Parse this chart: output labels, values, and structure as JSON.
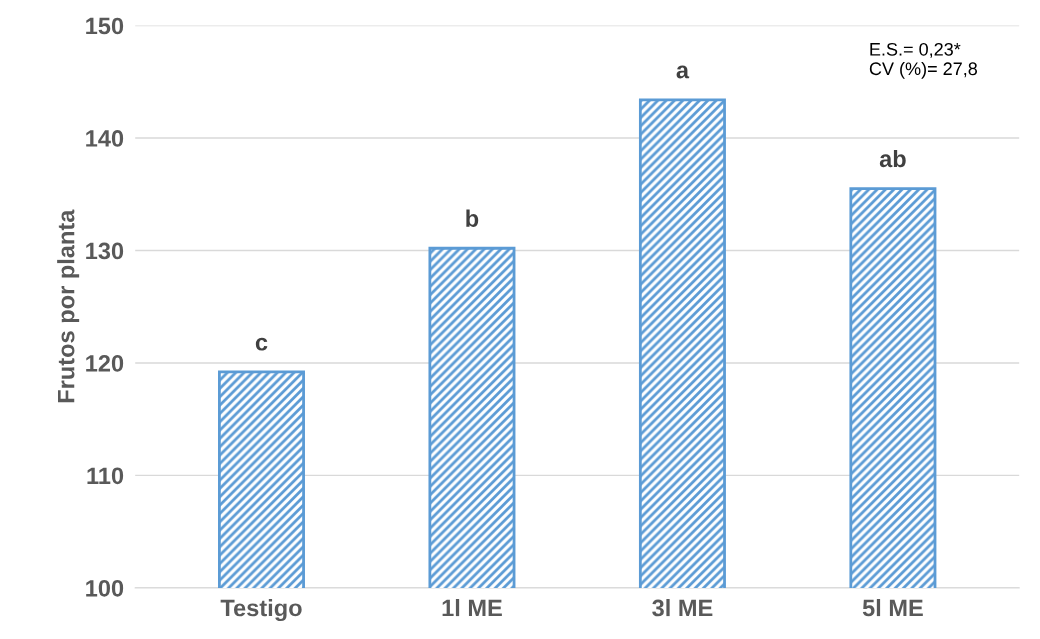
{
  "chart_data": {
    "type": "bar",
    "ylabel": "Frutos por planta",
    "categories": [
      "Testigo",
      "1l ME",
      "3l ME",
      "5l ME"
    ],
    "values": [
      119.2,
      130.2,
      143.4,
      135.5
    ],
    "color": "#5b9bd5",
    "ylim": [
      100,
      150
    ],
    "yticks": [
      100,
      110,
      120,
      130,
      140,
      150
    ],
    "grid": "y",
    "annotations": [
      {
        "text": "c",
        "x": "Testigo",
        "y": 119.2
      },
      {
        "text": "b",
        "x": "1l ME",
        "y": 130.2
      },
      {
        "text": "a",
        "x": "3l ME",
        "y": 143.4
      },
      {
        "text": "ab",
        "x": "5l ME",
        "y": 135.5
      },
      "E.S.= 0,23*\nCV (%)= 27,8"
    ]
  }
}
